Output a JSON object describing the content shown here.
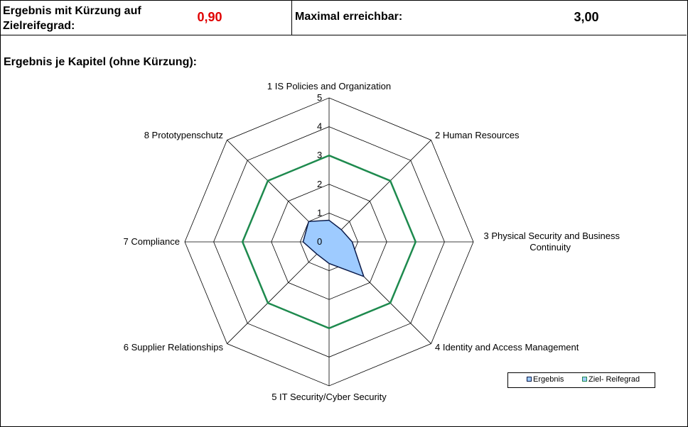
{
  "header": {
    "result_label_line1": "Ergebnis mit Kürzung auf",
    "result_label_line2": "Zielreifegrad:",
    "result_value": "0,90",
    "result_value_color": "#e00000",
    "max_label": "Maximal erreichbar:",
    "max_value": "3,00"
  },
  "section_title": "Ergebnis je Kapitel (ohne Kürzung):",
  "chart_data": {
    "type": "radar",
    "title": "",
    "axes": [
      "1 IS Policies and Organization",
      "2 Human Resources",
      "3 Physical Security and Business Continuity",
      "4 Identity and Access Management",
      "5 IT Security/Cyber Security",
      "6 Supplier Relationships",
      "7 Compliance",
      "8 Prototypenschutz"
    ],
    "axis_labels_display": [
      [
        "1 IS Policies and Organization"
      ],
      [
        "2 Human Resources"
      ],
      [
        "3 Physical Security and Business",
        "Continuity"
      ],
      [
        "4 Identity and Access Management"
      ],
      [
        "5 IT Security/Cyber Security"
      ],
      [
        "6 Supplier Relationships"
      ],
      [
        "7 Compliance"
      ],
      [
        "8 Prototypenschutz"
      ]
    ],
    "rlim": [
      0,
      5
    ],
    "ticks": [
      "0",
      "1",
      "2",
      "3",
      "4",
      "5"
    ],
    "series": [
      {
        "name": "Ergebnis",
        "values": [
          0.75,
          0.6,
          0.8,
          1.7,
          0.75,
          0.6,
          0.9,
          1.0
        ],
        "line_color": "#0a1a4a",
        "fill_color": "#9ecbff"
      },
      {
        "name": "Ziel- Reifegrad",
        "values": [
          3,
          3,
          3,
          3,
          3,
          3,
          3,
          3
        ],
        "line_color": "#1e8a4e",
        "fill_color": "none"
      }
    ],
    "legend_position": "bottom-right"
  }
}
